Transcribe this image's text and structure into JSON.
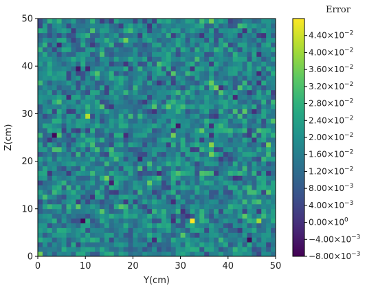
{
  "chart_data": {
    "type": "heatmap",
    "xlabel": "Y(cm)",
    "ylabel": "Z(cm)",
    "xlim": [
      0,
      50
    ],
    "ylim": [
      0,
      50
    ],
    "grid_size": [
      50,
      50
    ],
    "x_ticks": [
      0,
      10,
      20,
      30,
      40,
      50
    ],
    "y_ticks": [
      0,
      10,
      20,
      30,
      40,
      50
    ],
    "x_tick_labels": [
      "0",
      "10",
      "20",
      "30",
      "40",
      "50"
    ],
    "y_tick_labels": [
      "0",
      "10",
      "20",
      "30",
      "40",
      "50"
    ],
    "colorbar": {
      "title": "Error",
      "range": [
        -0.008,
        0.048
      ],
      "ticks": [
        -0.008,
        -0.004,
        0.0,
        0.004,
        0.008,
        0.012,
        0.016,
        0.02,
        0.024,
        0.028,
        0.032,
        0.036,
        0.04,
        0.044
      ],
      "tick_labels": [
        {
          "mantissa": "−8.00",
          "exp": "−3"
        },
        {
          "mantissa": "−4.00",
          "exp": "−3"
        },
        {
          "mantissa": "0.00",
          "exp": "0"
        },
        {
          "mantissa": "4.00",
          "exp": "−3"
        },
        {
          "mantissa": "8.00",
          "exp": "−3"
        },
        {
          "mantissa": "1.20",
          "exp": "−2"
        },
        {
          "mantissa": "1.60",
          "exp": "−2"
        },
        {
          "mantissa": "2.00",
          "exp": "−2"
        },
        {
          "mantissa": "2.40",
          "exp": "−2"
        },
        {
          "mantissa": "2.80",
          "exp": "−2"
        },
        {
          "mantissa": "3.20",
          "exp": "−2"
        },
        {
          "mantissa": "3.60",
          "exp": "−2"
        },
        {
          "mantissa": "4.00",
          "exp": "−2"
        },
        {
          "mantissa": "4.40",
          "exp": "−2"
        }
      ],
      "colormap": "viridis"
    },
    "value_distribution": {
      "mean": 0.017,
      "stddev": 0.007
    },
    "notable_cells": [
      {
        "y_cm": 10,
        "z_cm": 29,
        "value": 0.042
      },
      {
        "y_cm": 32,
        "z_cm": 7,
        "value": 0.048
      },
      {
        "y_cm": 46,
        "z_cm": 7,
        "value": 0.04
      },
      {
        "y_cm": 36,
        "z_cm": 23,
        "value": 0.038
      },
      {
        "y_cm": 18,
        "z_cm": 45,
        "value": 0.036
      },
      {
        "y_cm": 36,
        "z_cm": 36,
        "value": 0.035
      }
    ],
    "grid": false
  }
}
